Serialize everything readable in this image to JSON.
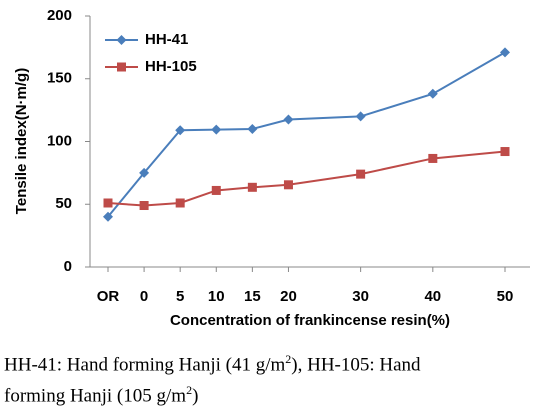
{
  "chart_data": {
    "type": "line",
    "ylabel": "Tensile index(N·m/g)",
    "xlabel": "Concentration of  frankincense resin(%)",
    "categories": [
      "OR",
      "0",
      "5",
      "10",
      "15",
      "20",
      "30",
      "40",
      "50"
    ],
    "series": [
      {
        "name": "HH-41",
        "color": "#4a7ebb",
        "marker": "diamond",
        "values": [
          40,
          75,
          109,
          109.5,
          110,
          117.5,
          120,
          138,
          171
        ]
      },
      {
        "name": "HH-105",
        "color": "#be4b48",
        "marker": "square",
        "values": [
          51,
          49,
          51,
          61,
          63.5,
          65.5,
          74,
          86.5,
          92
        ]
      }
    ],
    "ylim": [
      0,
      200
    ],
    "yticks": [
      0,
      50,
      100,
      150,
      200
    ],
    "legend": "upper-left"
  },
  "caption": {
    "line1": [
      "HH-41: Hand forming Hanji (41 g/m",
      "2",
      "), HH-105: Hand"
    ],
    "line2": [
      "forming Hanji (105 g/m",
      "2",
      ")"
    ]
  }
}
